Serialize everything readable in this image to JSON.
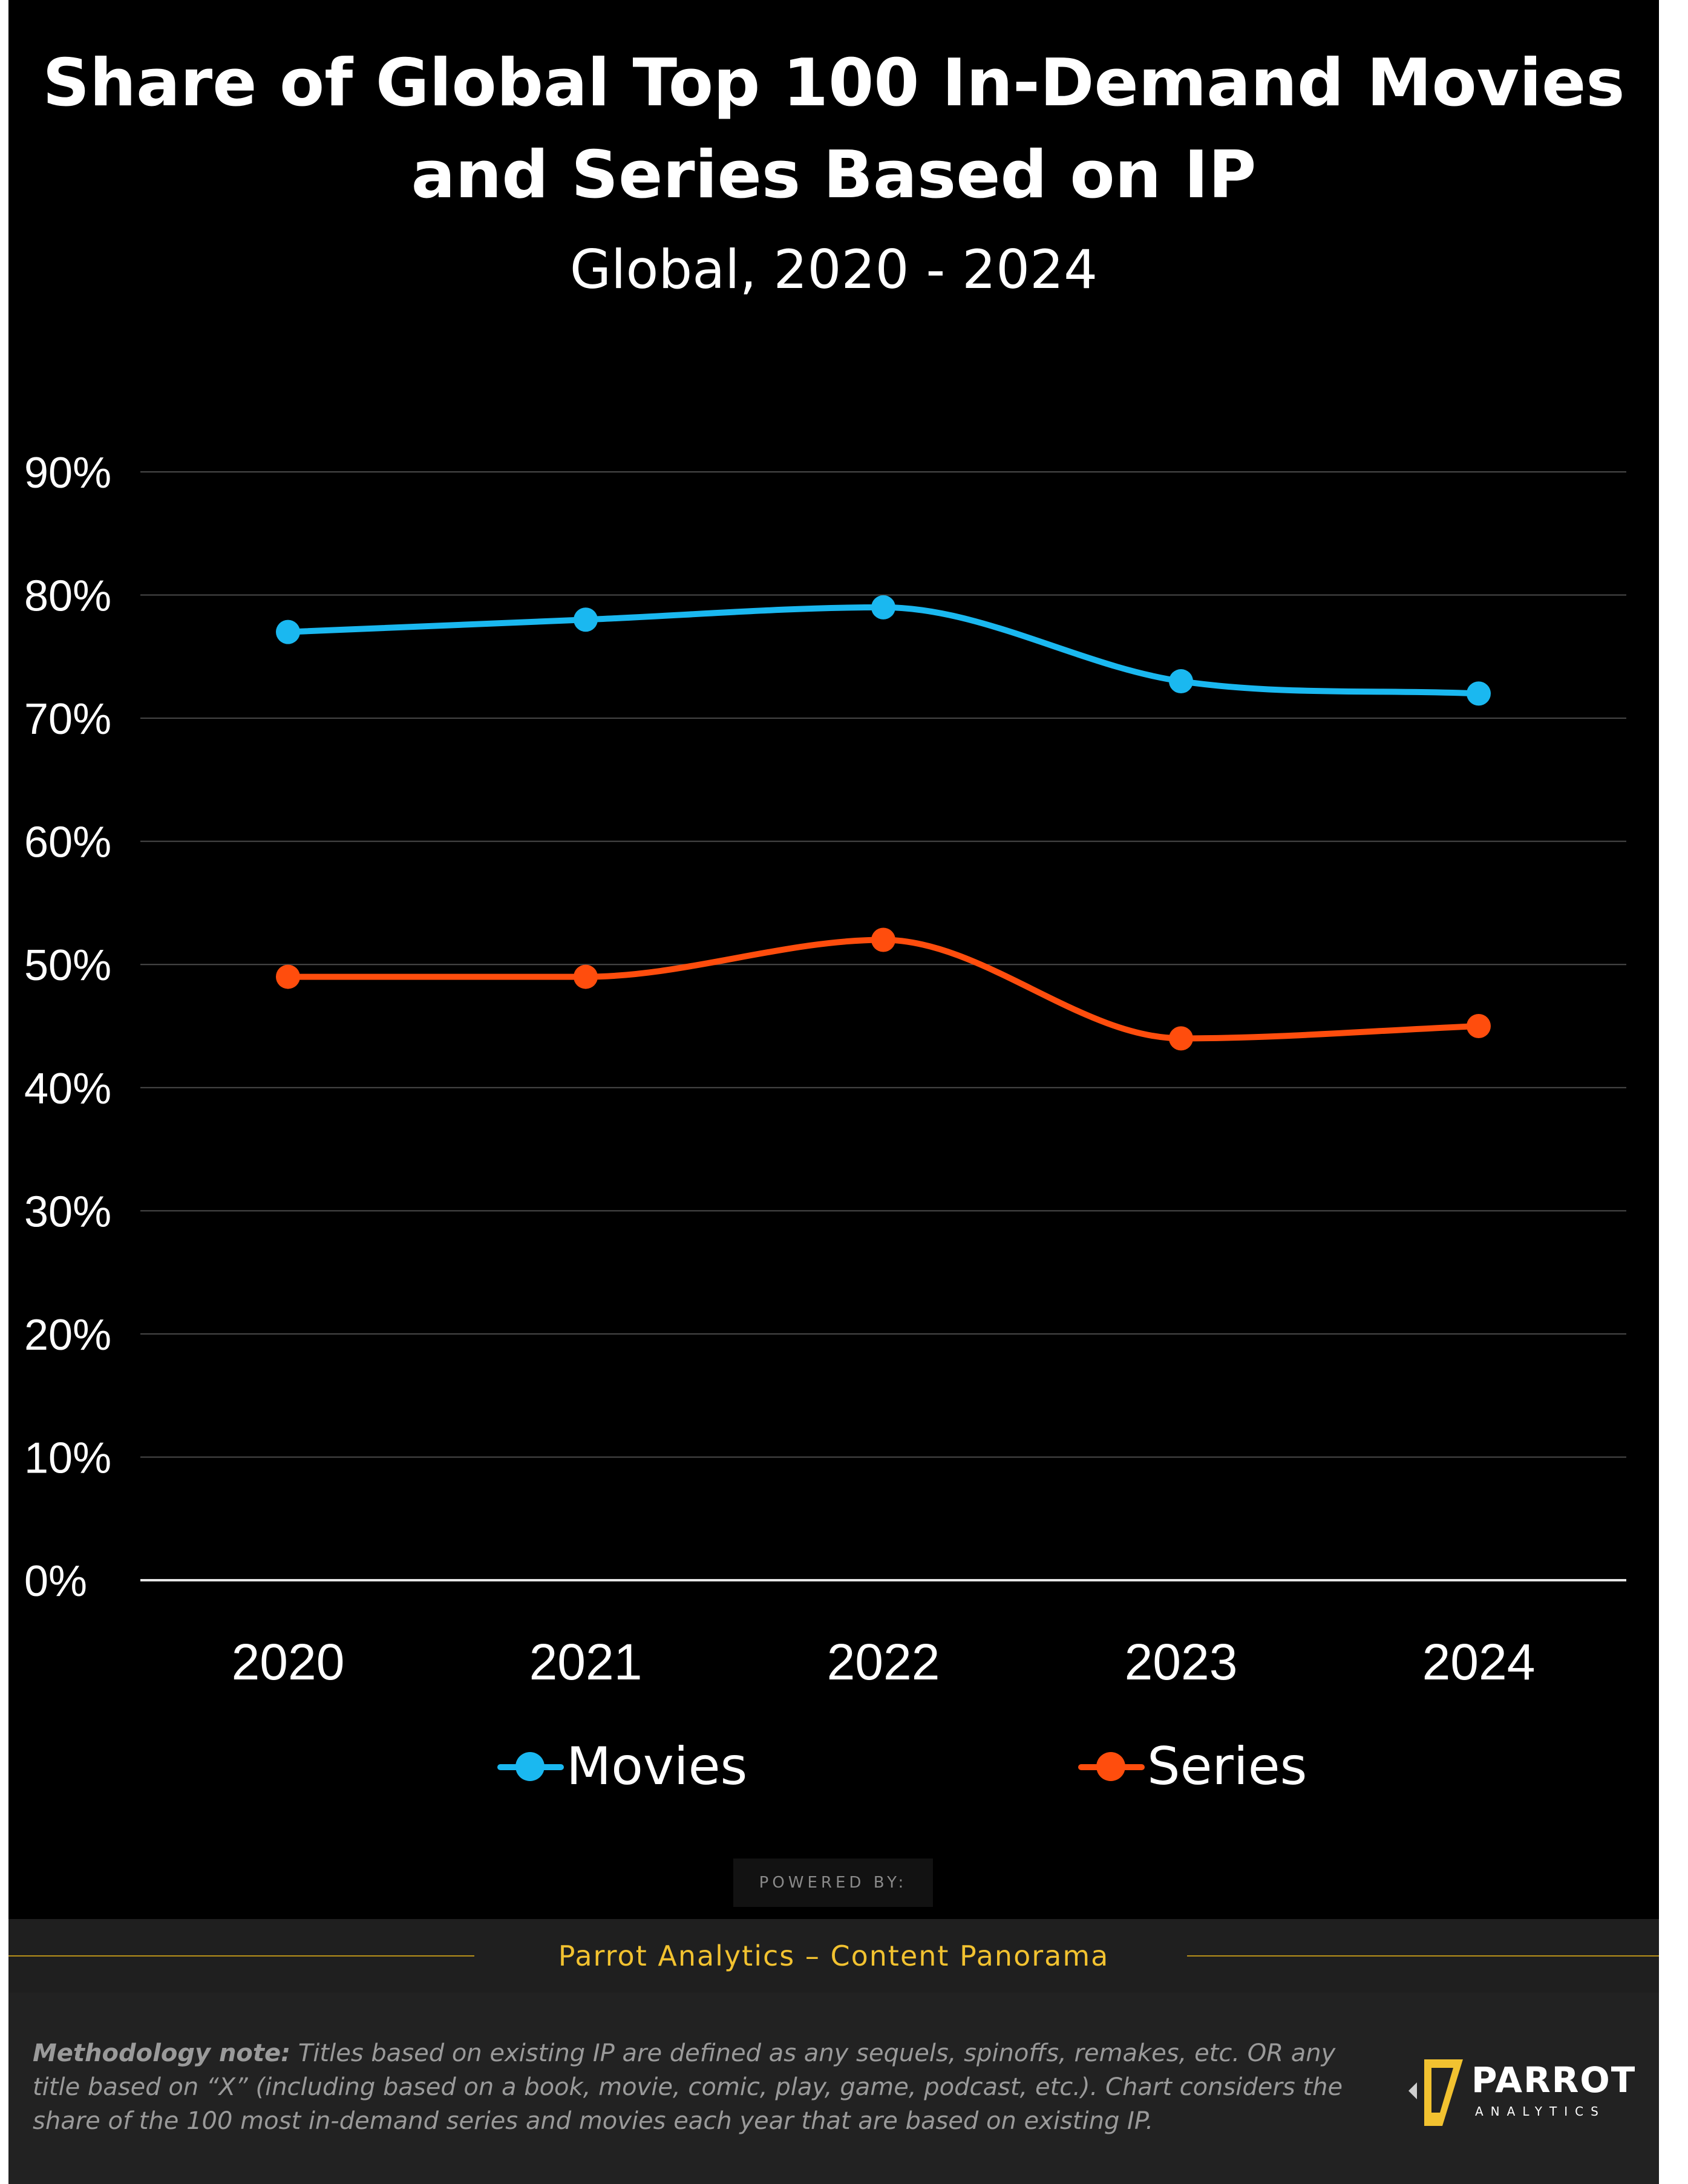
{
  "title": "Share of Global Top 100 In-Demand Movies and Series Based on IP",
  "subtitle": "Global, 2020 - 2024",
  "chart_data": {
    "type": "line",
    "title": "Share of Global Top 100 In-Demand Movies and Series Based on IP",
    "subtitle": "Global, 2020 - 2024",
    "categories": [
      "2020",
      "2021",
      "2022",
      "2023",
      "2024"
    ],
    "series": [
      {
        "name": "Movies",
        "color": "#1ab8f0",
        "values": [
          77,
          78,
          79,
          73,
          72
        ]
      },
      {
        "name": "Series",
        "color": "#ff4d0d",
        "values": [
          49,
          49,
          52,
          44,
          45
        ]
      }
    ],
    "yticks": [
      "0%",
      "10%",
      "20%",
      "30%",
      "40%",
      "50%",
      "60%",
      "70%",
      "80%",
      "90%"
    ],
    "ylim": [
      0,
      90
    ],
    "xlabel": "",
    "ylabel": "",
    "grid": true,
    "legend_position": "bottom"
  },
  "powered_by": "POWERED BY:",
  "source": "Parrot Analytics – Content Panorama",
  "methodology": {
    "label": "Methodology note:",
    "text": " Titles based on existing IP are defined as any sequels, spinoffs, remakes, etc. OR any title based on “X” (including based on a book, movie, comic, play, game, podcast, etc.). Chart considers the share of the 100 most in-demand series and movies each year that are based on existing IP."
  },
  "logo": {
    "name": "PARROT",
    "sub": "ANALYTICS"
  },
  "colors": {
    "background": "#000000",
    "accent": "#f2c230",
    "movies": "#1ab8f0",
    "series": "#ff4d0d"
  }
}
